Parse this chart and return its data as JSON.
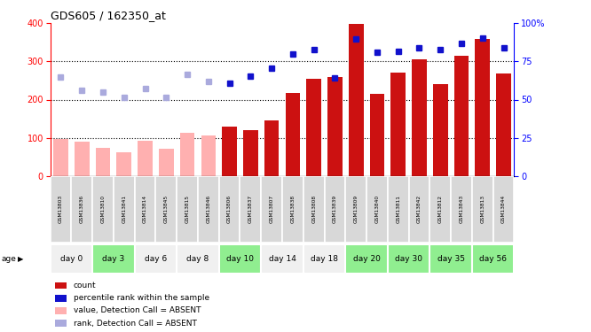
{
  "title": "GDS605 / 162350_at",
  "samples": [
    "GSM13803",
    "GSM13836",
    "GSM13810",
    "GSM13841",
    "GSM13814",
    "GSM13845",
    "GSM13815",
    "GSM13846",
    "GSM13806",
    "GSM13837",
    "GSM13807",
    "GSM13838",
    "GSM13808",
    "GSM13839",
    "GSM13809",
    "GSM13840",
    "GSM13811",
    "GSM13842",
    "GSM13812",
    "GSM13843",
    "GSM13813",
    "GSM13844"
  ],
  "age_groups": [
    {
      "label": "day 0",
      "start": 0,
      "end": 2,
      "green": false
    },
    {
      "label": "day 3",
      "start": 2,
      "end": 4,
      "green": true
    },
    {
      "label": "day 6",
      "start": 4,
      "end": 6,
      "green": false
    },
    {
      "label": "day 8",
      "start": 6,
      "end": 8,
      "green": false
    },
    {
      "label": "day 10",
      "start": 8,
      "end": 10,
      "green": true
    },
    {
      "label": "day 14",
      "start": 10,
      "end": 12,
      "green": false
    },
    {
      "label": "day 18",
      "start": 12,
      "end": 14,
      "green": false
    },
    {
      "label": "day 20",
      "start": 14,
      "end": 16,
      "green": true
    },
    {
      "label": "day 30",
      "start": 16,
      "end": 18,
      "green": true
    },
    {
      "label": "day 35",
      "start": 18,
      "end": 20,
      "green": true
    },
    {
      "label": "day 56",
      "start": 20,
      "end": 22,
      "green": true
    }
  ],
  "count_values": [
    97,
    90,
    73,
    62,
    93,
    72,
    113,
    105,
    130,
    120,
    145,
    217,
    255,
    260,
    399,
    215,
    270,
    305,
    240,
    315,
    360,
    268
  ],
  "count_absent": [
    true,
    true,
    true,
    true,
    true,
    true,
    true,
    true,
    false,
    false,
    false,
    false,
    false,
    false,
    false,
    false,
    false,
    false,
    false,
    false,
    false,
    false
  ],
  "rank_values": [
    258,
    225,
    220,
    205,
    230,
    205,
    265,
    248,
    243,
    262,
    283,
    320,
    330,
    256,
    360,
    323,
    326,
    335,
    330,
    348,
    362,
    335
  ],
  "rank_absent": [
    true,
    true,
    true,
    true,
    true,
    true,
    true,
    true,
    false,
    false,
    false,
    false,
    false,
    false,
    false,
    false,
    false,
    false,
    false,
    false,
    false,
    false
  ],
  "bar_color_present": "#cc1111",
  "bar_color_absent": "#ffb0b0",
  "rank_color_present": "#1111cc",
  "rank_color_absent": "#aaaadd",
  "legend_items": [
    {
      "color": "#cc1111",
      "label": "count"
    },
    {
      "color": "#1111cc",
      "label": "percentile rank within the sample"
    },
    {
      "color": "#ffb0b0",
      "label": "value, Detection Call = ABSENT"
    },
    {
      "color": "#aaaadd",
      "label": "rank, Detection Call = ABSENT"
    }
  ]
}
